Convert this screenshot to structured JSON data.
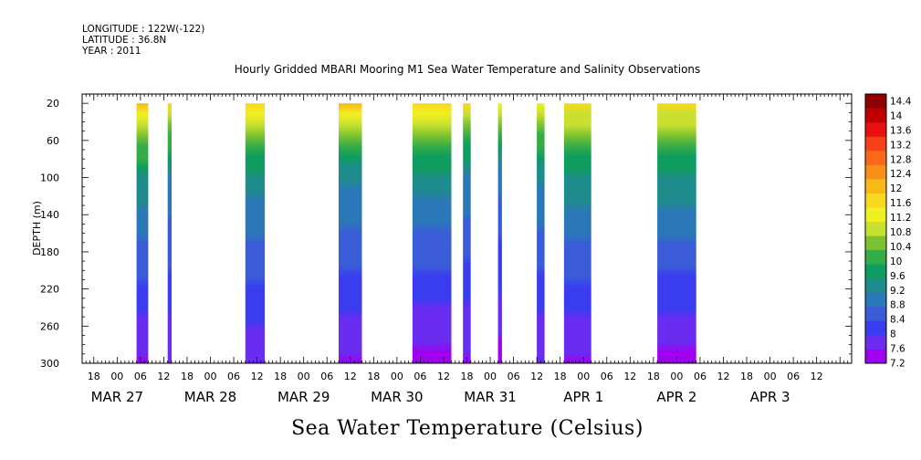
{
  "header": {
    "longitude": "LONGITUDE : 122W(-122)",
    "latitude": "LATITUDE : 36.8N",
    "year": "YEAR : 2011"
  },
  "chart_data": {
    "type": "heatmap",
    "title": "Hourly Gridded MBARI Mooring M1 Sea Water Temperature and Salinity Observations",
    "xlabel": "Sea Water Temperature (Celsius)",
    "ylabel": "DEPTH (m)",
    "ylim": [
      300,
      10
    ],
    "y_inverted": true,
    "y_ticks": [
      20,
      60,
      100,
      140,
      180,
      220,
      260,
      300
    ],
    "x_axis_start": "2011-03-26 09:00",
    "x_axis_end": "2011-04-03 15:00",
    "x_tick_hours": [
      "18",
      "00",
      "06",
      "12",
      "18",
      "00",
      "06",
      "12",
      "18",
      "00",
      "06",
      "12",
      "18",
      "00",
      "06",
      "12",
      "18",
      "00",
      "06",
      "12",
      "18",
      "00",
      "06",
      "12",
      "18",
      "00",
      "06",
      "12",
      "18",
      "00",
      "06",
      "12"
    ],
    "date_labels": [
      "MAR 27",
      "MAR 28",
      "MAR 29",
      "MAR 30",
      "MAR 31",
      "APR  1",
      "APR  2",
      "APR  3"
    ],
    "colorbar": {
      "min": 7.2,
      "max": 14.6,
      "labels": [
        "14.4",
        "14",
        "13.6",
        "13.2",
        "12.8",
        "12.4",
        "12",
        "11.6",
        "11.2",
        "10.8",
        "10.4",
        "10",
        "9.6",
        "9.2",
        "8.8",
        "8.4",
        "8",
        "7.6",
        "7.2"
      ],
      "colors": [
        "#a000f0",
        "#6a2cf0",
        "#3a3cf0",
        "#3a5cd8",
        "#2a78b8",
        "#1e8c8c",
        "#0e9c60",
        "#34ac48",
        "#7cc230",
        "#c8e030",
        "#f0f020",
        "#f8d820",
        "#f8b818",
        "#f89018",
        "#f86818",
        "#f84018",
        "#e81010",
        "#c00000",
        "#900000"
      ]
    },
    "data_segments": [
      {
        "start": "2011-03-26 23:00",
        "end": "2011-03-27 02:00",
        "temp_top": 11.9,
        "temp_100m": 9.4,
        "temp_bottom": 7.5
      },
      {
        "start": "2011-03-27 07:00",
        "end": "2011-03-27 08:00",
        "temp_top": 11.7,
        "temp_100m": 9.1,
        "temp_bottom": 7.6
      },
      {
        "start": "2011-03-28 03:00",
        "end": "2011-03-28 08:00",
        "temp_top": 11.8,
        "temp_100m": 9.3,
        "temp_bottom": 7.6
      },
      {
        "start": "2011-03-29 03:00",
        "end": "2011-03-29 09:00",
        "temp_top": 11.9,
        "temp_100m": 9.2,
        "temp_bottom": 7.5
      },
      {
        "start": "2011-03-29 22:00",
        "end": "2011-03-30 08:00",
        "temp_top": 11.8,
        "temp_100m": 9.3,
        "temp_bottom": 7.4
      },
      {
        "start": "2011-03-30 11:00",
        "end": "2011-03-30 13:00",
        "temp_top": 11.5,
        "temp_100m": 9.1,
        "temp_bottom": 7.5
      },
      {
        "start": "2011-03-30 20:00",
        "end": "2011-03-30 21:00",
        "temp_top": 11.4,
        "temp_100m": 8.9,
        "temp_bottom": 7.4
      },
      {
        "start": "2011-03-31 06:00",
        "end": "2011-03-31 08:00",
        "temp_top": 11.4,
        "temp_100m": 9.2,
        "temp_bottom": 7.6
      },
      {
        "start": "2011-03-31 13:00",
        "end": "2011-03-31 20:00",
        "temp_top": 11.6,
        "temp_100m": 9.4,
        "temp_bottom": 7.5
      },
      {
        "start": "2011-04-01 13:00",
        "end": "2011-04-01 23:00",
        "temp_top": 11.6,
        "temp_100m": 9.4,
        "temp_bottom": 7.4
      }
    ]
  }
}
